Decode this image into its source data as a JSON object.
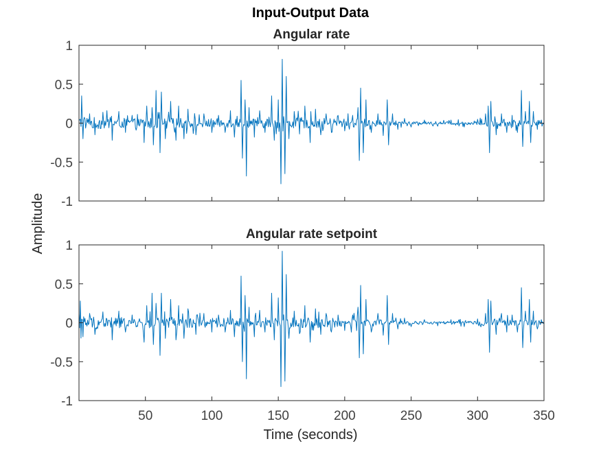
{
  "figure": {
    "title": "Input-Output Data",
    "ylabel": "Amplitude",
    "xlabel": "Time (seconds)"
  },
  "colors": {
    "line": "#0072BD",
    "axes": "#262626",
    "tick_text": "#404040"
  },
  "chart_data": [
    {
      "type": "line",
      "title": "Angular rate",
      "xlim": [
        0,
        350
      ],
      "ylim": [
        -1,
        1
      ],
      "xticks": [
        50,
        100,
        150,
        200,
        250,
        300,
        350
      ],
      "yticks": [
        1,
        0.5,
        0,
        -0.5,
        -1
      ],
      "ytick_labels": [
        "1",
        "0.5",
        "0",
        "-0.5",
        "-1"
      ],
      "show_x_tick_labels": false,
      "grid": false,
      "series": [
        {
          "sample_step": 0.5,
          "spikes": [
            [
              2,
              0.35
            ],
            [
              3,
              -0.2
            ],
            [
              8,
              0.12
            ],
            [
              12,
              -0.15
            ],
            [
              18,
              0.14
            ],
            [
              25,
              -0.22
            ],
            [
              30,
              0.15
            ],
            [
              35,
              -0.12
            ],
            [
              40,
              0.1
            ],
            [
              49,
              -0.25
            ],
            [
              51,
              0.22
            ],
            [
              55,
              0.2
            ],
            [
              56,
              -0.28
            ],
            [
              58,
              0.42
            ],
            [
              61,
              -0.38
            ],
            [
              62,
              0.4
            ],
            [
              65,
              -0.2
            ],
            [
              69,
              0.28
            ],
            [
              73,
              -0.22
            ],
            [
              75,
              0.22
            ],
            [
              79,
              -0.2
            ],
            [
              82,
              0.18
            ],
            [
              88,
              -0.15
            ],
            [
              94,
              0.12
            ],
            [
              100,
              -0.12
            ],
            [
              105,
              0.1
            ],
            [
              110,
              -0.12
            ],
            [
              114,
              0.16
            ],
            [
              117,
              -0.18
            ],
            [
              122,
              0.55
            ],
            [
              123,
              -0.45
            ],
            [
              125,
              0.3
            ],
            [
              126,
              -0.68
            ],
            [
              128,
              0.2
            ],
            [
              132,
              -0.18
            ],
            [
              136,
              0.16
            ],
            [
              140,
              -0.12
            ],
            [
              145,
              0.35
            ],
            [
              147,
              -0.22
            ],
            [
              150,
              0.3
            ],
            [
              152,
              -0.78
            ],
            [
              153,
              0.82
            ],
            [
              155,
              -0.65
            ],
            [
              156,
              0.6
            ],
            [
              158,
              -0.2
            ],
            [
              162,
              0.15
            ],
            [
              166,
              -0.14
            ],
            [
              170,
              0.22
            ],
            [
              174,
              -0.25
            ],
            [
              178,
              0.18
            ],
            [
              182,
              -0.15
            ],
            [
              186,
              0.12
            ],
            [
              190,
              -0.12
            ],
            [
              195,
              0.1
            ],
            [
              200,
              -0.1
            ],
            [
              206,
              0.1
            ],
            [
              210,
              0.2
            ],
            [
              211,
              -0.48
            ],
            [
              212,
              0.45
            ],
            [
              214,
              -0.38
            ],
            [
              216,
              0.3
            ],
            [
              220,
              -0.12
            ],
            [
              225,
              0.12
            ],
            [
              229,
              -0.16
            ],
            [
              232,
              0.3
            ],
            [
              233,
              -0.28
            ],
            [
              236,
              0.12
            ],
            [
              240,
              -0.08
            ],
            [
              245,
              0.06
            ],
            [
              250,
              -0.05
            ],
            [
              260,
              0.04
            ],
            [
              270,
              -0.04
            ],
            [
              280,
              0.04
            ],
            [
              290,
              -0.05
            ],
            [
              300,
              0.05
            ],
            [
              306,
              0.12
            ],
            [
              308,
              0.22
            ],
            [
              309,
              -0.38
            ],
            [
              310,
              0.28
            ],
            [
              314,
              -0.15
            ],
            [
              318,
              0.12
            ],
            [
              322,
              -0.12
            ],
            [
              326,
              0.1
            ],
            [
              330,
              -0.12
            ],
            [
              333,
              0.42
            ],
            [
              334,
              -0.3
            ],
            [
              336,
              0.15
            ],
            [
              339,
              0.28
            ],
            [
              340,
              -0.25
            ],
            [
              342,
              0.15
            ],
            [
              345,
              -0.08
            ],
            [
              348,
              0.04
            ]
          ],
          "noise": [
            [
              0,
              0.12
            ],
            [
              45,
              0.08
            ],
            [
              50,
              0.1
            ],
            [
              120,
              0.08
            ],
            [
              160,
              0.1
            ],
            [
              205,
              0.08
            ],
            [
              215,
              0.08
            ],
            [
              238,
              0.04
            ],
            [
              250,
              0.025
            ],
            [
              300,
              0.03
            ],
            [
              305,
              0.06
            ],
            [
              345,
              0.06
            ],
            [
              350,
              0.02
            ]
          ]
        }
      ]
    },
    {
      "type": "line",
      "title": "Angular rate setpoint",
      "xlim": [
        0,
        350
      ],
      "ylim": [
        -1,
        1
      ],
      "xticks": [
        50,
        100,
        150,
        200,
        250,
        300,
        350
      ],
      "xtick_labels": [
        "50",
        "100",
        "150",
        "200",
        "250",
        "300",
        "350"
      ],
      "yticks": [
        1,
        0.5,
        0,
        -0.5,
        -1
      ],
      "ytick_labels": [
        "1",
        "0.5",
        "0",
        "-0.5",
        "-1"
      ],
      "show_x_tick_labels": true,
      "grid": false,
      "series": [
        {
          "sample_step": 0.5,
          "spikes": [
            [
              1,
              0.28
            ],
            [
              3,
              -0.18
            ],
            [
              8,
              0.12
            ],
            [
              12,
              -0.15
            ],
            [
              18,
              0.14
            ],
            [
              25,
              -0.22
            ],
            [
              30,
              0.15
            ],
            [
              35,
              -0.12
            ],
            [
              40,
              0.1
            ],
            [
              49,
              -0.25
            ],
            [
              51,
              0.22
            ],
            [
              55,
              0.38
            ],
            [
              56,
              -0.28
            ],
            [
              58,
              0.25
            ],
            [
              61,
              -0.42
            ],
            [
              62,
              0.38
            ],
            [
              65,
              -0.2
            ],
            [
              69,
              0.3
            ],
            [
              73,
              -0.22
            ],
            [
              75,
              0.22
            ],
            [
              79,
              -0.2
            ],
            [
              82,
              0.18
            ],
            [
              88,
              -0.15
            ],
            [
              94,
              0.12
            ],
            [
              100,
              -0.12
            ],
            [
              105,
              0.1
            ],
            [
              110,
              -0.12
            ],
            [
              114,
              0.16
            ],
            [
              117,
              -0.18
            ],
            [
              122,
              0.6
            ],
            [
              123,
              -0.5
            ],
            [
              125,
              0.35
            ],
            [
              126,
              -0.72
            ],
            [
              128,
              0.2
            ],
            [
              132,
              -0.18
            ],
            [
              136,
              0.16
            ],
            [
              140,
              -0.12
            ],
            [
              145,
              0.38
            ],
            [
              147,
              -0.22
            ],
            [
              150,
              0.32
            ],
            [
              152,
              -0.82
            ],
            [
              153,
              0.92
            ],
            [
              155,
              -0.75
            ],
            [
              156,
              0.62
            ],
            [
              158,
              -0.2
            ],
            [
              162,
              0.15
            ],
            [
              166,
              -0.14
            ],
            [
              170,
              0.22
            ],
            [
              174,
              -0.25
            ],
            [
              178,
              0.18
            ],
            [
              182,
              -0.15
            ],
            [
              186,
              0.12
            ],
            [
              190,
              -0.12
            ],
            [
              195,
              0.1
            ],
            [
              200,
              -0.1
            ],
            [
              206,
              0.1
            ],
            [
              210,
              0.2
            ],
            [
              211,
              -0.45
            ],
            [
              212,
              0.48
            ],
            [
              214,
              -0.4
            ],
            [
              216,
              0.3
            ],
            [
              220,
              -0.12
            ],
            [
              225,
              0.12
            ],
            [
              229,
              -0.16
            ],
            [
              232,
              0.35
            ],
            [
              233,
              -0.28
            ],
            [
              236,
              0.12
            ],
            [
              240,
              -0.08
            ],
            [
              245,
              0.06
            ],
            [
              250,
              -0.05
            ],
            [
              260,
              0.04
            ],
            [
              270,
              -0.04
            ],
            [
              280,
              0.04
            ],
            [
              290,
              -0.05
            ],
            [
              300,
              0.05
            ],
            [
              306,
              0.12
            ],
            [
              308,
              0.3
            ],
            [
              309,
              -0.38
            ],
            [
              310,
              0.28
            ],
            [
              314,
              -0.15
            ],
            [
              318,
              0.12
            ],
            [
              322,
              -0.12
            ],
            [
              326,
              0.1
            ],
            [
              330,
              -0.12
            ],
            [
              333,
              0.45
            ],
            [
              334,
              -0.32
            ],
            [
              336,
              0.15
            ],
            [
              339,
              0.3
            ],
            [
              340,
              -0.25
            ],
            [
              342,
              0.15
            ],
            [
              345,
              -0.08
            ],
            [
              348,
              0.04
            ]
          ],
          "noise": [
            [
              0,
              0.14
            ],
            [
              45,
              0.08
            ],
            [
              50,
              0.1
            ],
            [
              120,
              0.08
            ],
            [
              160,
              0.1
            ],
            [
              205,
              0.08
            ],
            [
              215,
              0.08
            ],
            [
              238,
              0.04
            ],
            [
              250,
              0.025
            ],
            [
              300,
              0.03
            ],
            [
              305,
              0.06
            ],
            [
              345,
              0.06
            ],
            [
              350,
              0.02
            ]
          ]
        }
      ]
    }
  ]
}
